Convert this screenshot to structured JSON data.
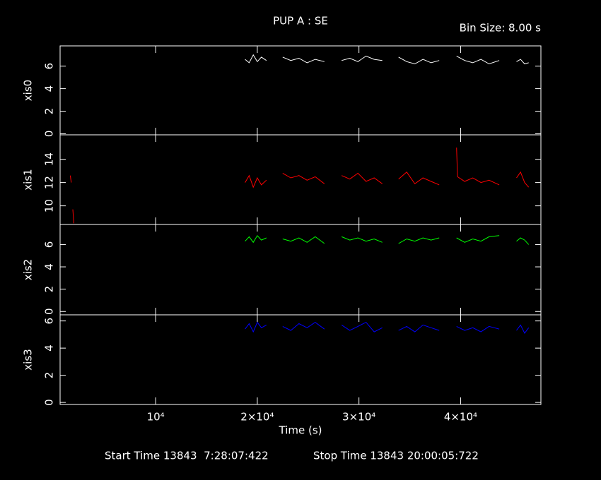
{
  "title": "PUP A : SE",
  "subtitle": "Bin Size: 8.00 s",
  "footer": [
    "Start Time 13843  7:28:07:422",
    "Stop Time 13843 20:00:05:722"
  ],
  "chart_data": [
    {
      "type": "line",
      "ylabel": "xis0",
      "color": "#ffffff",
      "xlim": [
        600,
        47900
      ],
      "ylim": [
        -0.1,
        7.8
      ],
      "yticks": [
        0,
        2,
        4,
        6
      ],
      "x": [
        18800,
        19200,
        19600,
        20000,
        20400,
        20900,
        21700,
        22500,
        23300,
        24100,
        24900,
        25700,
        26600,
        27400,
        28300,
        29100,
        29900,
        30700,
        31500,
        32300,
        33100,
        33900,
        34700,
        35500,
        36300,
        37100,
        37900,
        38700,
        39600,
        40400,
        41200,
        42000,
        42800,
        43800,
        44600,
        45500,
        45900,
        46300,
        46700
      ],
      "values": [
        6.6,
        6.3,
        7.0,
        6.4,
        6.8,
        6.5,
        null,
        6.8,
        6.5,
        6.7,
        6.3,
        6.6,
        6.4,
        null,
        6.5,
        6.7,
        6.4,
        6.9,
        6.6,
        6.5,
        null,
        6.8,
        6.4,
        6.2,
        6.6,
        6.3,
        6.5,
        null,
        6.9,
        6.5,
        6.3,
        6.6,
        6.2,
        6.5,
        null,
        6.4,
        6.6,
        6.2,
        6.3
      ]
    },
    {
      "type": "line",
      "ylabel": "xis1",
      "color": "#ff0000",
      "xlim": [
        600,
        47900
      ],
      "ylim": [
        8.4,
        16.1
      ],
      "yticks": [
        10,
        12,
        14
      ],
      "x": [
        1600,
        1700,
        1800,
        1850,
        1950,
        10000,
        18800,
        19200,
        19600,
        20000,
        20400,
        20900,
        21700,
        22500,
        23300,
        24100,
        24900,
        25700,
        26600,
        27400,
        28300,
        29100,
        29900,
        30700,
        31500,
        32300,
        33100,
        33900,
        34700,
        35500,
        36300,
        37100,
        37900,
        38700,
        39600,
        39700,
        40400,
        41200,
        42000,
        42800,
        43800,
        44600,
        45500,
        45900,
        46300,
        46700
      ],
      "values": [
        12.6,
        12.0,
        null,
        9.7,
        8.5,
        null,
        12.0,
        12.6,
        11.6,
        12.4,
        11.8,
        12.2,
        null,
        12.8,
        12.4,
        12.6,
        12.2,
        12.5,
        11.9,
        null,
        12.6,
        12.3,
        12.8,
        12.1,
        12.4,
        11.9,
        null,
        12.3,
        12.9,
        11.9,
        12.4,
        12.1,
        11.8,
        null,
        15.0,
        12.5,
        12.1,
        12.4,
        12.0,
        12.2,
        11.8,
        null,
        12.4,
        12.9,
        12.0,
        11.6
      ]
    },
    {
      "type": "line",
      "ylabel": "xis2",
      "color": "#00ff00",
      "xlim": [
        600,
        47900
      ],
      "ylim": [
        -0.3,
        7.8
      ],
      "yticks": [
        0,
        2,
        4,
        6
      ],
      "x": [
        18800,
        19200,
        19600,
        20000,
        20400,
        20900,
        21700,
        22500,
        23300,
        24100,
        24900,
        25700,
        26600,
        27400,
        28300,
        29100,
        29900,
        30700,
        31500,
        32300,
        33100,
        33900,
        34700,
        35500,
        36300,
        37100,
        37900,
        38700,
        39600,
        40400,
        41200,
        42000,
        42800,
        43800,
        44600,
        45500,
        45900,
        46300,
        46700
      ],
      "values": [
        6.3,
        6.7,
        6.2,
        6.8,
        6.4,
        6.6,
        null,
        6.5,
        6.3,
        6.6,
        6.2,
        6.7,
        6.1,
        null,
        6.7,
        6.4,
        6.6,
        6.3,
        6.5,
        6.2,
        null,
        6.1,
        6.5,
        6.3,
        6.6,
        6.4,
        6.6,
        null,
        6.6,
        6.2,
        6.5,
        6.3,
        6.7,
        6.8,
        null,
        6.3,
        6.6,
        6.4,
        6.0
      ]
    },
    {
      "type": "line",
      "ylabel": "xis3",
      "color": "#0000ff",
      "xlim": [
        600,
        47900
      ],
      "ylim": [
        -0.15,
        6.45
      ],
      "yticks": [
        0,
        2,
        4,
        6
      ],
      "xlabel": "Time (s)",
      "xticks": [
        {
          "value": 10000,
          "label": "10⁴"
        },
        {
          "value": 20000,
          "label": "2×10⁴"
        },
        {
          "value": 30000,
          "label": "3×10⁴"
        },
        {
          "value": 40000,
          "label": "4×10⁴"
        }
      ],
      "x": [
        18800,
        19200,
        19600,
        20000,
        20400,
        20900,
        21700,
        22500,
        23300,
        24100,
        24900,
        25700,
        26600,
        27400,
        28300,
        29100,
        29900,
        30700,
        31500,
        32300,
        33100,
        33900,
        34700,
        35500,
        36300,
        37100,
        37900,
        38700,
        39600,
        40400,
        41200,
        42000,
        42800,
        43800,
        44600,
        45500,
        45900,
        46300,
        46700
      ],
      "values": [
        5.4,
        5.8,
        5.2,
        5.9,
        5.5,
        5.7,
        null,
        5.6,
        5.3,
        5.8,
        5.5,
        5.9,
        5.4,
        null,
        5.7,
        5.3,
        5.6,
        5.9,
        5.2,
        5.5,
        null,
        5.3,
        5.6,
        5.2,
        5.7,
        5.5,
        5.3,
        null,
        5.6,
        5.3,
        5.5,
        5.2,
        5.6,
        5.4,
        null,
        5.3,
        5.7,
        5.1,
        5.5
      ]
    }
  ]
}
